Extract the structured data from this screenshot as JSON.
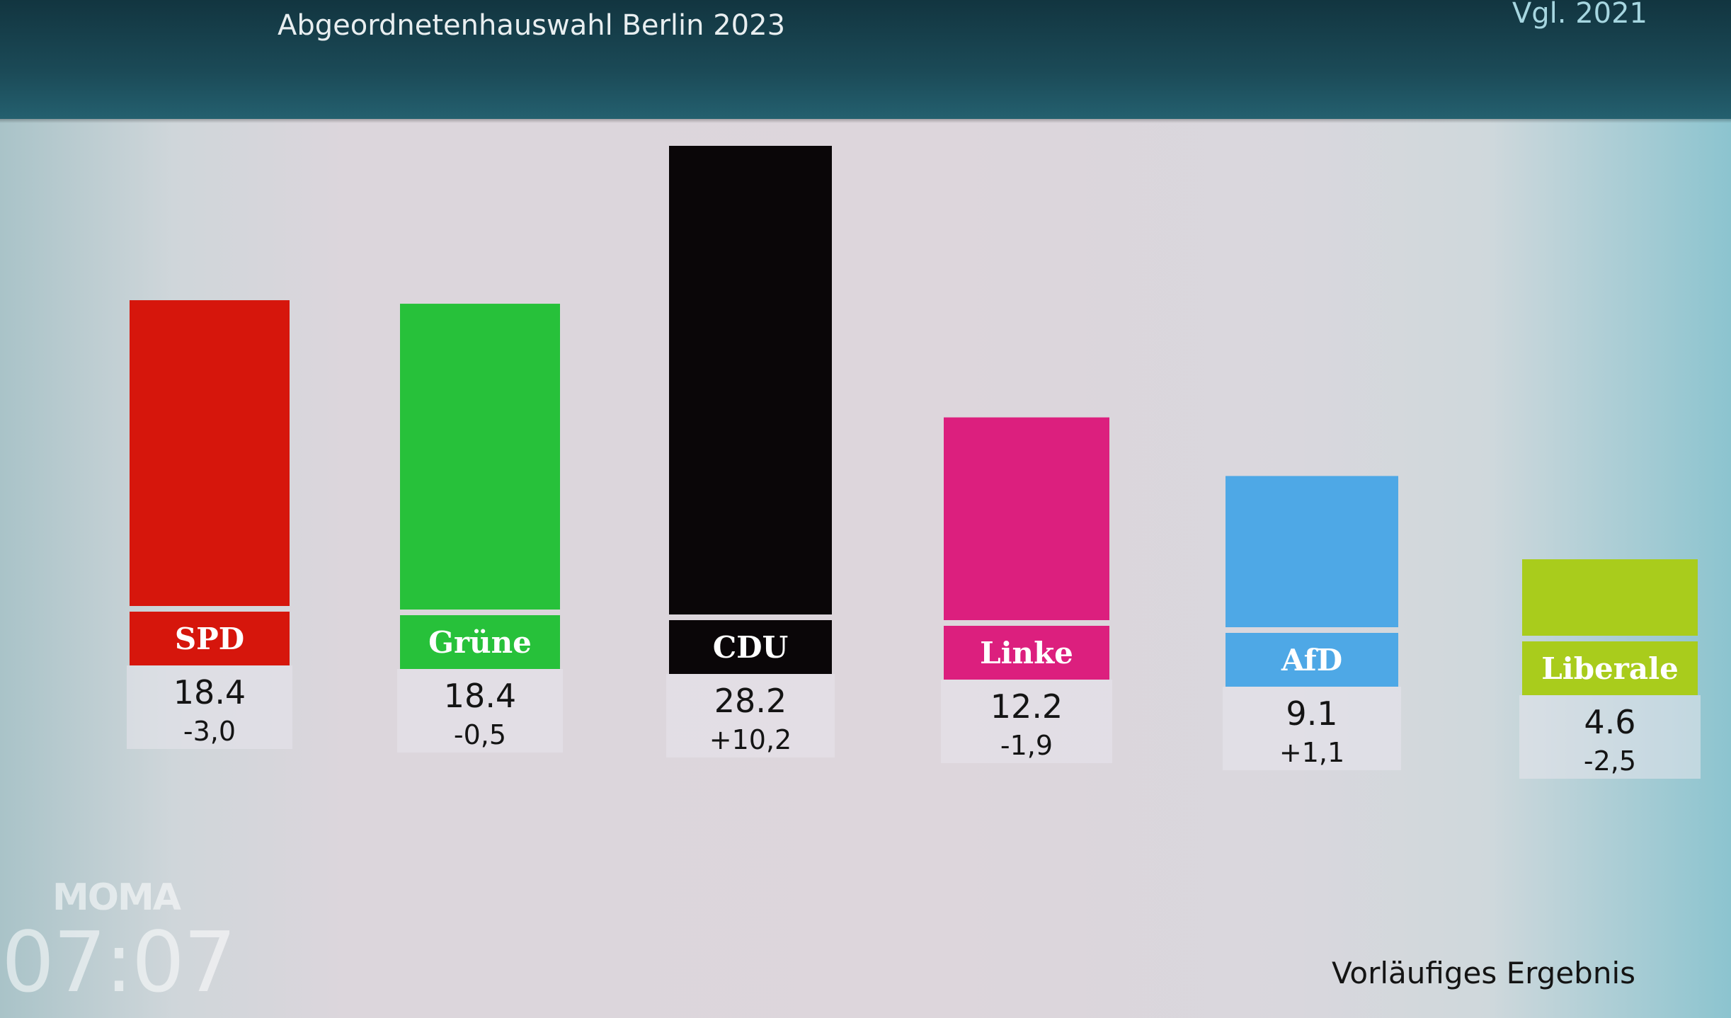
{
  "header": {
    "title": "Abgeordnetenhauswahl Berlin 2023",
    "compare_label": "Vgl. 2021"
  },
  "chart_data": {
    "type": "bar",
    "title": "Abgeordnetenhauswahl Berlin 2023",
    "categories": [
      "SPD",
      "Grüne",
      "CDU",
      "Linke",
      "AfD",
      "Liberale"
    ],
    "values": [
      18.4,
      18.4,
      28.2,
      12.2,
      9.1,
      4.6
    ],
    "value_labels": [
      "18.4",
      "18.4",
      "28.2",
      "12.2",
      "9.1",
      "4.6"
    ],
    "change_vs_2021": [
      "-3,0",
      "-0,5",
      "+10,2",
      "-1,9",
      "+1,1",
      "-2,5"
    ],
    "colors": [
      "#d6160c",
      "#27c13a",
      "#0a0608",
      "#dc1f7e",
      "#4ea8e6",
      "#a9cc1c"
    ],
    "ylim": [
      0,
      30
    ],
    "grid": false,
    "legend": "none"
  },
  "footer": {
    "note": "Vorläufiges Ergebnis",
    "logo": "MOMA",
    "time": "07:07"
  }
}
